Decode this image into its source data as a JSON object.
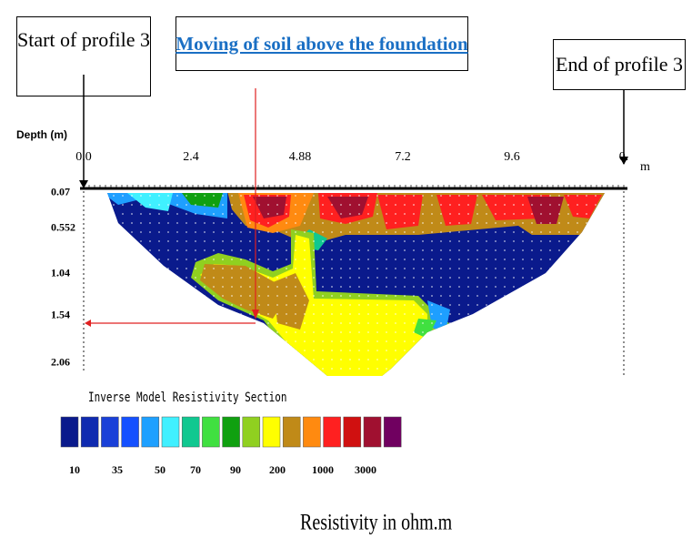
{
  "annotations": {
    "start_label": "Start of profile 3",
    "end_label": "End of profile 3",
    "title": "Moving of soil above the foundation"
  },
  "chart_data": {
    "type": "heatmap",
    "title": "Inverse Model Resistivity Section",
    "ylabel": "Depth (m)",
    "xlabel_unit": "m",
    "x_ticks": [
      "0.0",
      "2.4",
      "4.88",
      "7.2",
      "9.6",
      "0."
    ],
    "y_ticks": [
      "0.07",
      "0.552",
      "1.04",
      "1.54",
      "2.06"
    ],
    "legend": {
      "values": [
        "10",
        "35",
        "50",
        "70",
        "90",
        "200",
        "1000",
        "3000"
      ],
      "colors": [
        "#0a1a8c",
        "#0f2ab0",
        "#1a40d8",
        "#1550ff",
        "#1ea0ff",
        "#40f0ff",
        "#10c890",
        "#40e040",
        "#10a010",
        "#90d020",
        "#ffff00",
        "#c08a18",
        "#ff8a10",
        "#ff2020",
        "#d01010",
        "#a01030",
        "#700060"
      ]
    },
    "caption": "Resistivity in ohm.m"
  }
}
